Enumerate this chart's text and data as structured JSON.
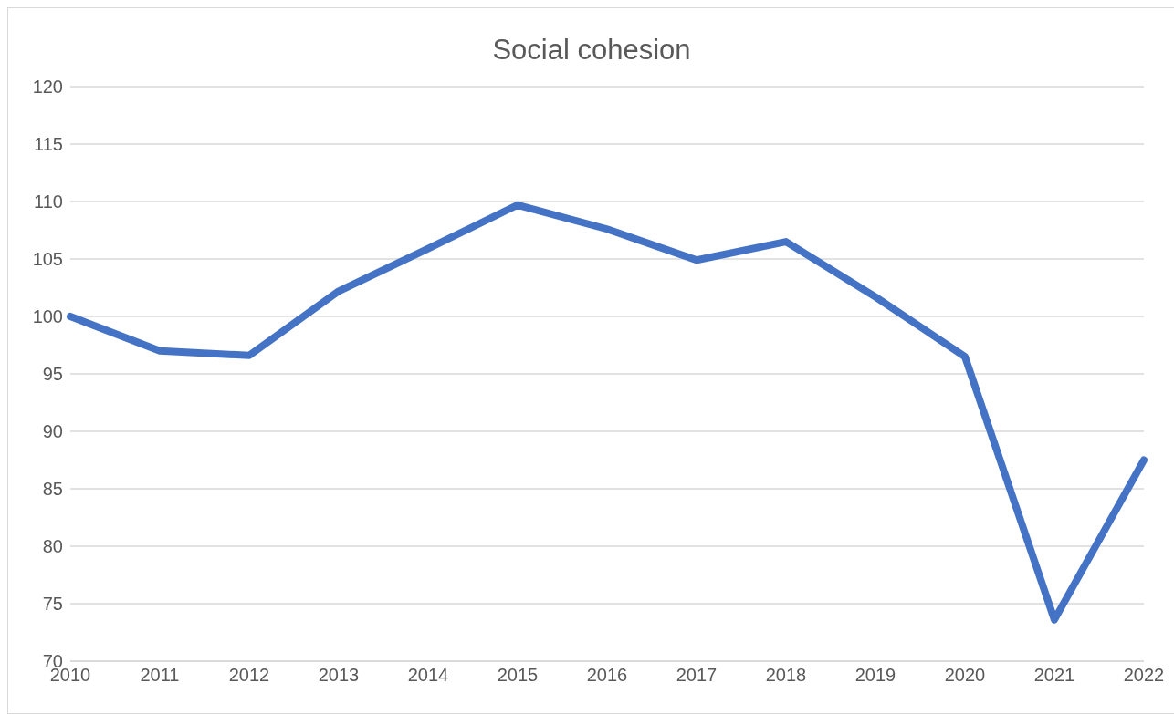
{
  "chart_data": {
    "type": "line",
    "title": "Social cohesion",
    "categories": [
      "2010",
      "2011",
      "2012",
      "2013",
      "2014",
      "2015",
      "2016",
      "2017",
      "2018",
      "2019",
      "2020",
      "2021",
      "2022"
    ],
    "series": [
      {
        "color": "#4472c4",
        "values": [
          100,
          97,
          96.6,
          102.2,
          105.9,
          109.7,
          107.6,
          104.9,
          106.5,
          101.7,
          96.5,
          73.6,
          87.5
        ]
      }
    ],
    "ylim": [
      70,
      120
    ],
    "yticks": [
      70,
      75,
      80,
      85,
      90,
      95,
      100,
      105,
      110,
      115,
      120
    ],
    "grid": "y",
    "legend": false,
    "marker": "none",
    "line_style": "solid"
  }
}
